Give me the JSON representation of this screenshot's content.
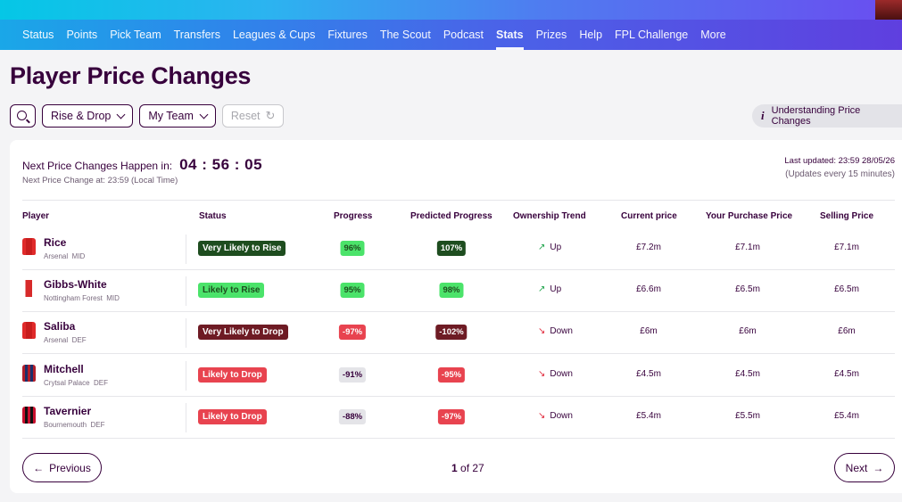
{
  "nav": {
    "items": [
      "Status",
      "Points",
      "Pick Team",
      "Transfers",
      "Leagues & Cups",
      "Fixtures",
      "The Scout",
      "Podcast",
      "Stats",
      "Prizes",
      "Help",
      "FPL Challenge",
      "More"
    ],
    "active": "Stats"
  },
  "page": {
    "title": "Player Price Changes"
  },
  "filters": {
    "search_icon": "search-icon",
    "rise_drop": "Rise & Drop",
    "my_team": "My Team",
    "reset": "Reset",
    "understanding": "Understanding Price Changes"
  },
  "timer": {
    "label": "Next Price Changes Happen in:",
    "countdown": "04 : 56 : 05",
    "local_time": "Next Price Change at: 23:59 (Local Time)",
    "last_updated": "Last updated: 23:59 28/05/26",
    "frequency": "(Updates every 15 minutes)"
  },
  "table": {
    "headers": {
      "player": "Player",
      "status": "Status",
      "progress": "Progress",
      "predicted": "Predicted Progress",
      "ownership": "Ownership Trend",
      "current": "Current price",
      "purchase": "Your Purchase Price",
      "selling": "Selling Price"
    },
    "rows": [
      {
        "name": "Rice",
        "team": "Arsenal",
        "pos": "MID",
        "status": "Very Likely to Rise",
        "progress": "96%",
        "predicted": "107%",
        "trend": "Up",
        "current": "£7.2m",
        "purchase": "£7.1m",
        "selling": "£7.1m"
      },
      {
        "name": "Gibbs-White",
        "team": "Nottingham Forest",
        "pos": "MID",
        "status": "Likely to Rise",
        "progress": "95%",
        "predicted": "98%",
        "trend": "Up",
        "current": "£6.6m",
        "purchase": "£6.5m",
        "selling": "£6.5m"
      },
      {
        "name": "Saliba",
        "team": "Arsenal",
        "pos": "DEF",
        "status": "Very Likely to Drop",
        "progress": "-97%",
        "predicted": "-102%",
        "trend": "Down",
        "current": "£6m",
        "purchase": "£6m",
        "selling": "£6m"
      },
      {
        "name": "Mitchell",
        "team": "Crytsal Palace",
        "pos": "DEF",
        "status": "Likely to Drop",
        "progress": "-91%",
        "predicted": "-95%",
        "trend": "Down",
        "current": "£4.5m",
        "purchase": "£4.5m",
        "selling": "£4.5m"
      },
      {
        "name": "Tavernier",
        "team": "Bournemouth",
        "pos": "DEF",
        "status": "Likely to Drop",
        "progress": "-88%",
        "predicted": "-97%",
        "trend": "Down",
        "current": "£5.4m",
        "purchase": "£5.5m",
        "selling": "£5.4m"
      }
    ]
  },
  "pagination": {
    "previous": "Previous",
    "next": "Next",
    "current": "1",
    "of": "of 27"
  }
}
